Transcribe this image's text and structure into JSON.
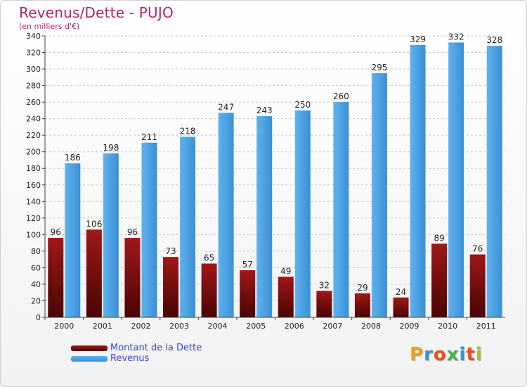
{
  "title": "Revenus/Dette - PUJO",
  "subtitle": "(en milliers d'€)",
  "colors": {
    "debt": "#6d0a0a",
    "revenue": "#4aa3e8",
    "title": "#b42463",
    "legend_text": "#4444cc"
  },
  "legend": {
    "debt_label": "Montant de la Dette",
    "revenue_label": "Revenus"
  },
  "logo": {
    "letters": [
      "P",
      "r",
      "o",
      "x",
      "i",
      "t",
      "i"
    ],
    "colors": [
      "#e8a21a",
      "#3a8fd8",
      "#e8501a",
      "#4caf50",
      "#3a8fd8",
      "#e8501a",
      "#9ac232"
    ]
  },
  "chart_data": {
    "type": "bar",
    "title": "Revenus/Dette - PUJO",
    "ylabel": "(en milliers d'€)",
    "xlabel": "",
    "ylim": [
      0,
      340
    ],
    "ytick_step": 20,
    "grid": true,
    "legend_position": "bottom-left",
    "categories": [
      "2000",
      "2001",
      "2002",
      "2003",
      "2004",
      "2005",
      "2006",
      "2007",
      "2008",
      "2009",
      "2010",
      "2011"
    ],
    "series": [
      {
        "name": "Montant de la Dette",
        "values": [
          96,
          106,
          96,
          73,
          65,
          57,
          49,
          32,
          29,
          24,
          89,
          76
        ]
      },
      {
        "name": "Revenus",
        "values": [
          186,
          198,
          211,
          218,
          247,
          243,
          250,
          260,
          295,
          329,
          332,
          328
        ]
      }
    ]
  }
}
